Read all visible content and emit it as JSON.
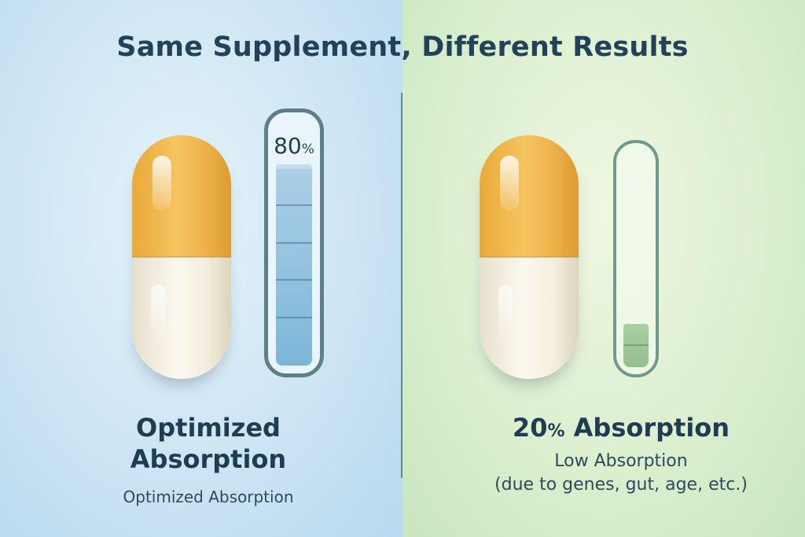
{
  "title": "Same Supplement, Different Results",
  "left": {
    "meter_value": "80",
    "meter_unit": "%",
    "fill_percent": 80,
    "label_line1": "Optimized",
    "label_line2": "Absorption",
    "caption": "Optimized Absorption",
    "colors": {
      "background": "#cde5f4",
      "fill": "#7db6d8",
      "outline": "#5d7f88"
    }
  },
  "right": {
    "label_value": "20",
    "label_unit": "%",
    "label_text": " Absorption",
    "fill_percent": 20,
    "caption_line1": "Low Absorption",
    "caption_line2": "(due to genes, gut, age, etc.)",
    "colors": {
      "background": "#dcefcf",
      "fill": "#94c08f",
      "outline": "#6f9a8e"
    }
  },
  "capsule_colors": {
    "top": "#f5c460",
    "bottom": "#fbf8ef"
  }
}
